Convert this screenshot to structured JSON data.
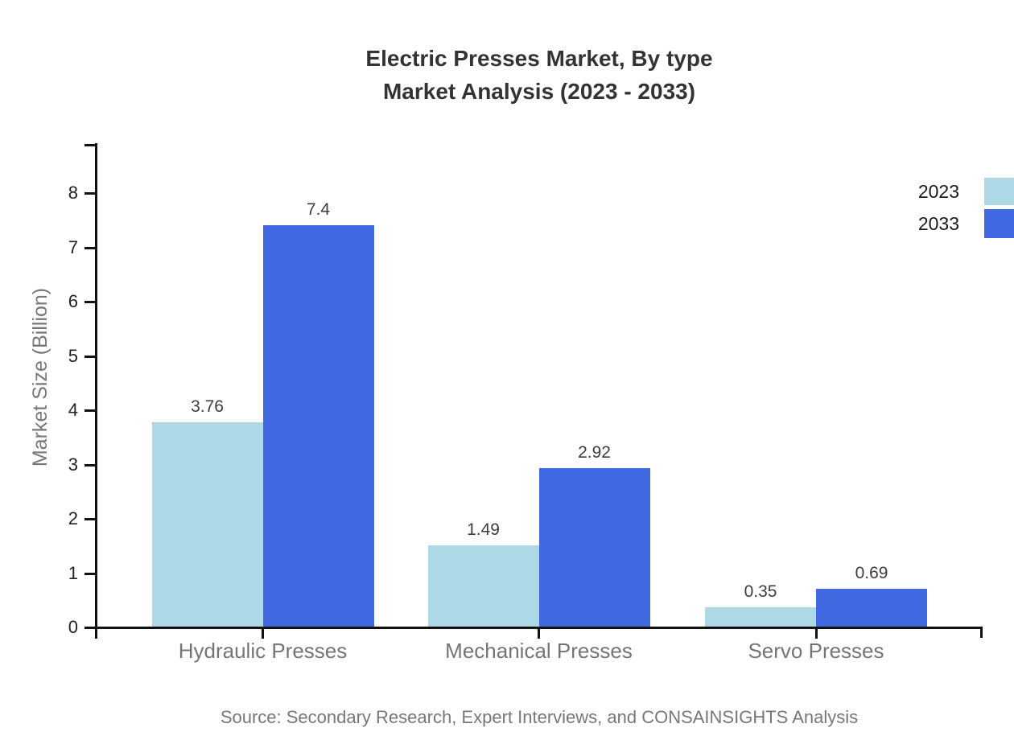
{
  "title": {
    "line1": "Electric Presses Market, By type",
    "line2": "Market Analysis (2023 - 2033)"
  },
  "source": {
    "text": "Source: Secondary Research, Expert Interviews, and CONSAINSIGHTS Analysis"
  },
  "legend": {
    "position": "top-right",
    "entries": [
      {
        "label": "2023",
        "color": "#ADD8E6"
      },
      {
        "label": "2033",
        "color": "#4169E1"
      }
    ]
  },
  "colors": {
    "series_2023": "#ADD8E6",
    "series_2033": "#4169E1",
    "axis": "#111111",
    "tick_label": "#222222",
    "category_label": "#757575",
    "value_label": "#3d3d3d",
    "title_text": "#333333",
    "muted_text": "#777777",
    "background": "#ffffff"
  },
  "chart_data": {
    "type": "bar",
    "title": "Electric Presses Market, By type — Market Analysis (2023 - 2033)",
    "categories": [
      "Hydraulic Presses",
      "Mechanical Presses",
      "Servo Presses"
    ],
    "series": [
      {
        "name": "2023",
        "color": "#ADD8E6",
        "values": [
          3.76,
          1.49,
          0.35
        ]
      },
      {
        "name": "2033",
        "color": "#4169E1",
        "values": [
          7.4,
          2.92,
          0.69
        ]
      }
    ],
    "value_labels": {
      "2023": [
        "3.76",
        "1.49",
        "0.35"
      ],
      "2033": [
        "7.4",
        "2.92",
        "0.69"
      ]
    },
    "xlabel": "",
    "ylabel": "Market Size (Billion)",
    "ylim": [
      0,
      8.9
    ],
    "yticks": [
      0,
      1,
      2,
      3,
      4,
      5,
      6,
      7,
      8
    ],
    "grid": false,
    "legend_position": "top-right"
  }
}
